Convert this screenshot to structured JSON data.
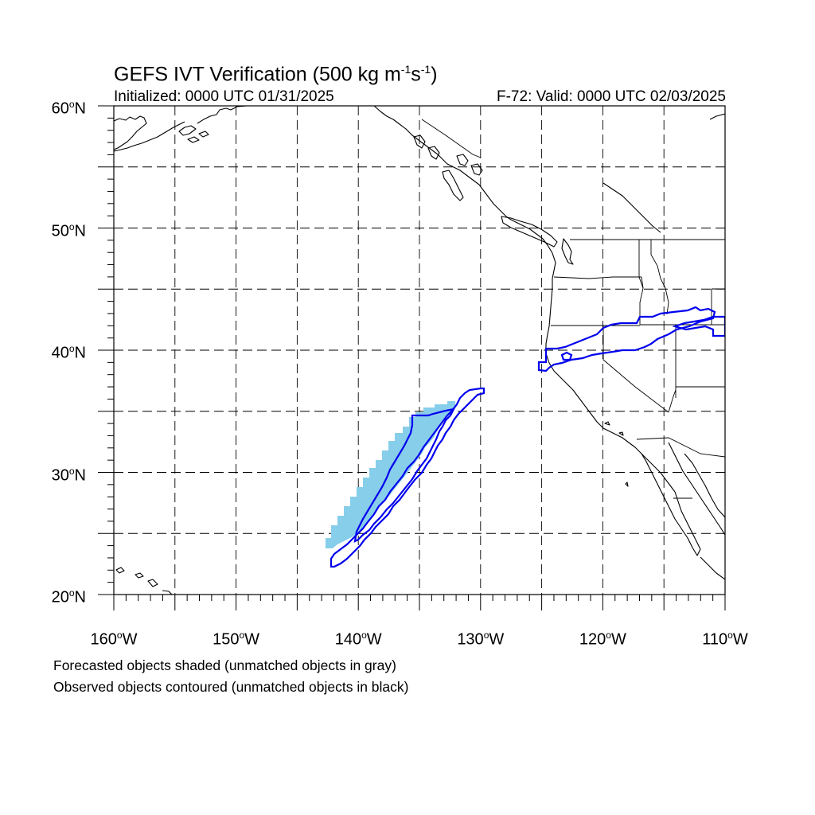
{
  "title": {
    "main": "GEFS IVT Verification (500 kg m",
    "exp1": "-1",
    "mid": "s",
    "exp2": "-1",
    "close": ")"
  },
  "init_label": "Initialized: 0000 UTC 01/31/2025",
  "valid_label": "F-72: Valid: 0000 UTC 02/03/2025",
  "lat_labels": [
    {
      "num": "60",
      "deg": "o",
      "hemi": "N"
    },
    {
      "num": "50",
      "deg": "o",
      "hemi": "N"
    },
    {
      "num": "40",
      "deg": "o",
      "hemi": "N"
    },
    {
      "num": "30",
      "deg": "o",
      "hemi": "N"
    },
    {
      "num": "20",
      "deg": "o",
      "hemi": "N"
    }
  ],
  "lon_labels": [
    {
      "num": "160",
      "deg": "o",
      "hemi": "W"
    },
    {
      "num": "150",
      "deg": "o",
      "hemi": "W"
    },
    {
      "num": "140",
      "deg": "o",
      "hemi": "W"
    },
    {
      "num": "130",
      "deg": "o",
      "hemi": "W"
    },
    {
      "num": "120",
      "deg": "o",
      "hemi": "W"
    },
    {
      "num": "110",
      "deg": "o",
      "hemi": "W"
    }
  ],
  "footnotes": [
    "Forecasted objects shaded (unmatched objects in gray)",
    "Observed objects contoured (unmatched objects in black)"
  ],
  "colors": {
    "forecast_fill": "#87CEEB",
    "observed_contour": "#0000EE",
    "coastline": "#000000",
    "grid": "#000000"
  },
  "map": {
    "lon_range": [
      -160,
      -110
    ],
    "lat_range": [
      20,
      60
    ],
    "grid_spacing_deg": 5
  }
}
